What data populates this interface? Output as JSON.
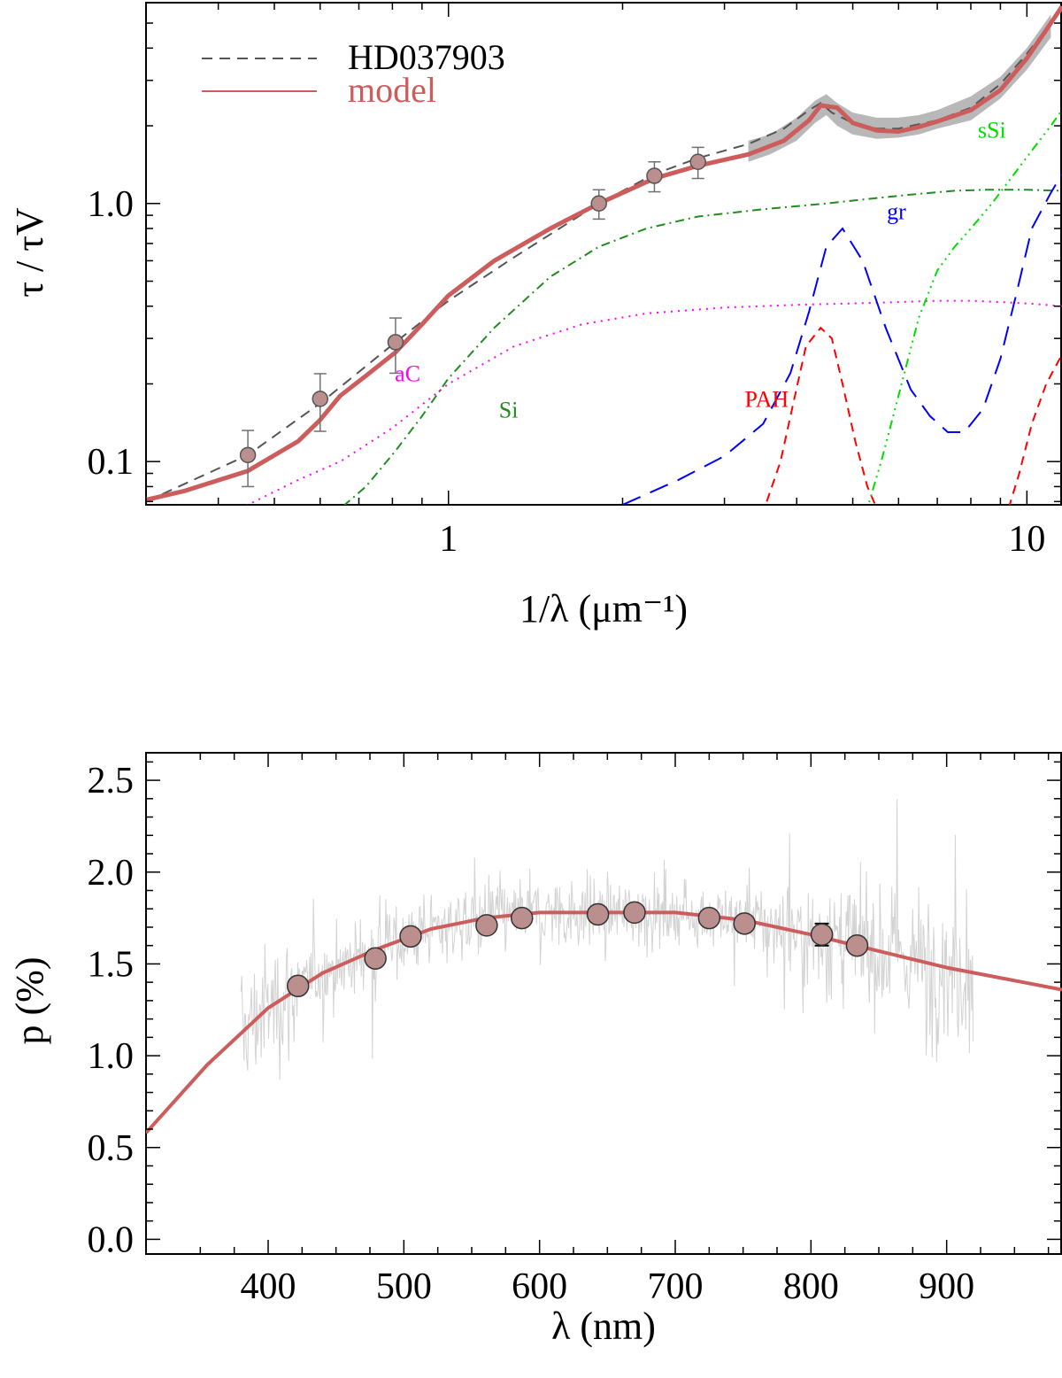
{
  "chart_data": [
    {
      "type": "line",
      "title": "",
      "xlabel": "1/λ (μm⁻¹)",
      "ylabel": "τ / τV",
      "xscale": "log",
      "yscale": "log",
      "xlim": [
        0.3,
        11.5
      ],
      "ylim": [
        0.068,
        6.0
      ],
      "x_ticks": [
        {
          "value": 1,
          "label": "1"
        },
        {
          "value": 10,
          "label": "10"
        }
      ],
      "y_ticks": [
        {
          "value": 0.1,
          "label": "0.1"
        },
        {
          "value": 1.0,
          "label": "1.0"
        }
      ],
      "legend": {
        "placement": "top-left",
        "entries": [
          {
            "label": "HD037903",
            "style": "dashed",
            "color": "#555555"
          },
          {
            "label": "model",
            "style": "solid",
            "color": "#cd5c5c"
          }
        ]
      },
      "observed_points": [
        {
          "x": 0.45,
          "y": 0.106,
          "err": 0.026
        },
        {
          "x": 0.6,
          "y": 0.175,
          "err": 0.044
        },
        {
          "x": 0.81,
          "y": 0.29,
          "err": 0.07
        },
        {
          "x": 1.82,
          "y": 1.0,
          "err": 0.13
        },
        {
          "x": 2.27,
          "y": 1.28,
          "err": 0.17
        },
        {
          "x": 2.7,
          "y": 1.45,
          "err": 0.2
        }
      ],
      "observed_curve": {
        "name": "HD037903",
        "x": [
          0.3,
          0.45,
          0.6,
          0.81,
          1.0,
          1.3,
          1.82,
          2.27,
          2.7,
          3.3,
          3.8,
          4.2,
          4.4,
          4.6,
          5.0,
          5.5,
          6.0,
          7.0,
          8.0,
          9.0,
          10.0,
          11.0,
          11.5
        ],
        "y": [
          0.07,
          0.106,
          0.168,
          0.29,
          0.42,
          0.62,
          1.0,
          1.3,
          1.5,
          1.7,
          1.95,
          2.3,
          2.45,
          2.25,
          2.05,
          1.95,
          1.95,
          2.1,
          2.35,
          2.9,
          3.8,
          5.0,
          5.6
        ]
      },
      "observed_uncertainty_band": {
        "x": [
          3.3,
          3.6,
          4.0,
          4.3,
          4.5,
          4.7,
          5.0,
          5.5,
          6.0,
          6.5,
          7.0,
          8.0,
          9.0,
          10.0,
          11.0
        ],
        "lower": [
          1.45,
          1.55,
          1.75,
          2.05,
          2.2,
          2.0,
          1.85,
          1.78,
          1.8,
          1.85,
          1.95,
          2.1,
          2.55,
          3.3,
          4.4
        ],
        "upper": [
          1.75,
          1.85,
          2.15,
          2.5,
          2.65,
          2.45,
          2.25,
          2.15,
          2.15,
          2.2,
          2.3,
          2.6,
          3.1,
          4.0,
          5.4
        ]
      },
      "series": [
        {
          "name": "model",
          "color": "#cd5c5c",
          "x": [
            0.3,
            0.35,
            0.45,
            0.55,
            0.6,
            0.65,
            0.72,
            0.81,
            0.9,
            1.0,
            1.2,
            1.5,
            1.82,
            2.27,
            2.7,
            3.3,
            3.8,
            4.2,
            4.4,
            4.7,
            5.0,
            5.5,
            6.0,
            6.5,
            7.0,
            8.0,
            9.0,
            10.0,
            11.0,
            11.5
          ],
          "y": [
            0.071,
            0.077,
            0.092,
            0.12,
            0.145,
            0.18,
            0.215,
            0.265,
            0.34,
            0.44,
            0.6,
            0.8,
            1.0,
            1.25,
            1.4,
            1.55,
            1.75,
            2.1,
            2.4,
            2.35,
            2.05,
            1.92,
            1.9,
            1.98,
            2.08,
            2.3,
            2.75,
            3.65,
            5.0,
            5.8
          ]
        },
        {
          "name": "aC",
          "color": "#ff00ff",
          "x": [
            0.38,
            0.45,
            0.55,
            0.65,
            0.8,
            1.0,
            1.3,
            1.7,
            2.2,
            3.0,
            4.0,
            5.0,
            6.0,
            7.0,
            8.0,
            9.0,
            10.0,
            11.5
          ],
          "y": [
            0.06,
            0.068,
            0.085,
            0.1,
            0.135,
            0.2,
            0.28,
            0.34,
            0.375,
            0.395,
            0.405,
            0.41,
            0.415,
            0.42,
            0.42,
            0.415,
            0.41,
            0.4
          ]
        },
        {
          "name": "Si",
          "color": "#228b22",
          "x": [
            0.62,
            0.72,
            0.81,
            0.9,
            1.0,
            1.2,
            1.5,
            1.82,
            2.2,
            2.7,
            3.5,
            4.5,
            5.5,
            6.5,
            7.5,
            8.5,
            10.0,
            11.5
          ],
          "y": [
            0.06,
            0.08,
            0.11,
            0.15,
            0.21,
            0.33,
            0.52,
            0.68,
            0.8,
            0.89,
            0.95,
            1.0,
            1.05,
            1.09,
            1.12,
            1.13,
            1.13,
            1.12
          ]
        },
        {
          "name": "gr",
          "color": "#0000ff",
          "x": [
            2.0,
            2.5,
            3.0,
            3.5,
            3.9,
            4.2,
            4.5,
            4.8,
            5.2,
            5.7,
            6.3,
            6.8,
            7.3,
            7.8,
            8.4,
            9.0,
            9.6,
            10.2,
            11.0,
            11.5
          ],
          "y": [
            0.068,
            0.085,
            0.105,
            0.14,
            0.22,
            0.38,
            0.68,
            0.8,
            0.6,
            0.33,
            0.19,
            0.15,
            0.13,
            0.13,
            0.16,
            0.25,
            0.45,
            0.8,
            1.1,
            1.3
          ]
        },
        {
          "name": "PAH",
          "color": "#ff0000",
          "x": [
            3.55,
            3.75,
            3.95,
            4.15,
            4.4,
            4.6,
            4.8,
            5.05,
            5.3,
            5.5
          ],
          "y": [
            0.07,
            0.1,
            0.17,
            0.28,
            0.33,
            0.3,
            0.2,
            0.12,
            0.08,
            0.066
          ],
          "x2": [
            9.3,
            9.7,
            10.2,
            10.8,
            11.5
          ],
          "y2": [
            0.066,
            0.09,
            0.14,
            0.2,
            0.26
          ]
        },
        {
          "name": "sSi",
          "color": "#00dd00",
          "x": [
            5.3,
            5.6,
            6.0,
            6.5,
            7.0,
            7.5,
            8.0,
            8.7,
            9.5,
            10.3,
            11.0,
            11.5
          ],
          "y": [
            0.066,
            0.1,
            0.18,
            0.36,
            0.55,
            0.68,
            0.8,
            1.0,
            1.3,
            1.65,
            2.0,
            2.3
          ]
        }
      ],
      "annotations": [
        {
          "text": "aC",
          "x": 0.85,
          "y": 0.205,
          "color": "#ff00ff"
        },
        {
          "text": "Si",
          "x": 1.27,
          "y": 0.148,
          "color": "#228b22"
        },
        {
          "text": "PAH",
          "x": 3.55,
          "y": 0.163,
          "color": "#ff0000"
        },
        {
          "text": "gr",
          "x": 5.95,
          "y": 0.87,
          "color": "#0000ff"
        },
        {
          "text": "sSi",
          "x": 8.7,
          "y": 1.8,
          "color": "#00dd00"
        }
      ]
    },
    {
      "type": "line",
      "title": "",
      "xlabel": "λ  (nm)",
      "ylabel": "p (%)",
      "xlim": [
        310,
        985
      ],
      "ylim": [
        -0.08,
        2.65
      ],
      "x_ticks": [
        {
          "value": 400,
          "label": "400"
        },
        {
          "value": 500,
          "label": "500"
        },
        {
          "value": 600,
          "label": "600"
        },
        {
          "value": 700,
          "label": "700"
        },
        {
          "value": 800,
          "label": "800"
        },
        {
          "value": 900,
          "label": "900"
        }
      ],
      "y_ticks": [
        {
          "value": 0.0,
          "label": "0.0"
        },
        {
          "value": 0.5,
          "label": "0.5"
        },
        {
          "value": 1.0,
          "label": "1.0"
        },
        {
          "value": 1.5,
          "label": "1.5"
        },
        {
          "value": 2.0,
          "label": "2.0"
        },
        {
          "value": 2.5,
          "label": "2.5"
        }
      ],
      "spectrum_noise": {
        "x_range": [
          380,
          920
        ],
        "color": "#d3d3d3",
        "note": "noisy observed polarization spectrum"
      },
      "series": [
        {
          "name": "model",
          "color": "#cd5c5c",
          "x": [
            310,
            355,
            400,
            440,
            480,
            520,
            560,
            600,
            640,
            700,
            750,
            800,
            850,
            900,
            985
          ],
          "y": [
            0.58,
            0.95,
            1.26,
            1.45,
            1.58,
            1.69,
            1.75,
            1.78,
            1.78,
            1.78,
            1.74,
            1.66,
            1.57,
            1.48,
            1.36
          ]
        }
      ],
      "points": [
        {
          "x": 422,
          "y": 1.38,
          "err": 0.03
        },
        {
          "x": 479,
          "y": 1.53,
          "err": 0.03
        },
        {
          "x": 505,
          "y": 1.65,
          "err": 0.03
        },
        {
          "x": 561,
          "y": 1.71,
          "err": 0.03
        },
        {
          "x": 587,
          "y": 1.75,
          "err": 0.03
        },
        {
          "x": 643,
          "y": 1.77,
          "err": 0.03
        },
        {
          "x": 670,
          "y": 1.78,
          "err": 0.03
        },
        {
          "x": 725,
          "y": 1.75,
          "err": 0.03
        },
        {
          "x": 751,
          "y": 1.72,
          "err": 0.03
        },
        {
          "x": 808,
          "y": 1.66,
          "err": 0.06
        },
        {
          "x": 834,
          "y": 1.6,
          "err": 0.03
        }
      ]
    }
  ]
}
